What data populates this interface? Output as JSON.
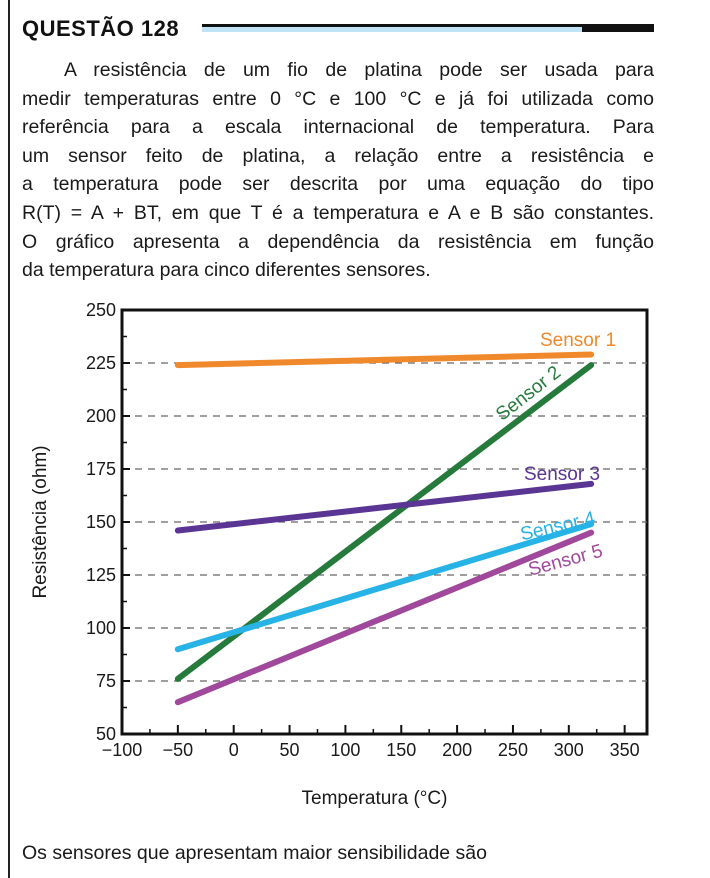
{
  "question": {
    "title": "QUESTÃO 128",
    "lines": [
      "A resistência de um fio de platina pode ser usada para",
      "medir temperaturas entre 0 °C e 100 °C e já foi utilizada como",
      "referência para a escala internacional de temperatura. Para",
      "um sensor feito de platina, a relação entre a resistência e",
      "a temperatura pode ser descrita por uma equação do tipo",
      "R(T) = A + BT, em que T é a temperatura e A e B são constantes.",
      "O gráfico apresenta a dependência da resistência em função",
      "da temperatura para cinco diferentes sensores."
    ],
    "footer": "Os sensores que apresentam maior sensibilidade são"
  },
  "chart_data": {
    "type": "line",
    "xlabel": "Temperatura (°C)",
    "ylabel": "Resistência (ohm)",
    "xlim": [
      -100,
      370
    ],
    "ylim": [
      50,
      250
    ],
    "x_ticks": [
      -100,
      -50,
      0,
      50,
      100,
      150,
      200,
      250,
      300,
      350
    ],
    "y_ticks": [
      50,
      75,
      100,
      125,
      150,
      175,
      200,
      225,
      250
    ],
    "grid": "horizontal dashed",
    "series": [
      {
        "name": "Sensor 1",
        "color": "#f0892b",
        "x": [
          -50,
          320
        ],
        "y": [
          224,
          229
        ]
      },
      {
        "name": "Sensor 2",
        "color": "#257a3c",
        "x": [
          -50,
          320
        ],
        "y": [
          76,
          224
        ]
      },
      {
        "name": "Sensor 3",
        "color": "#5b3593",
        "x": [
          -50,
          320
        ],
        "y": [
          146,
          168
        ]
      },
      {
        "name": "Sensor 4",
        "color": "#27b3e6",
        "x": [
          -50,
          320
        ],
        "y": [
          90,
          149
        ]
      },
      {
        "name": "Sensor 5",
        "color": "#a0489b",
        "x": [
          -50,
          320
        ],
        "y": [
          65,
          145
        ]
      }
    ]
  }
}
